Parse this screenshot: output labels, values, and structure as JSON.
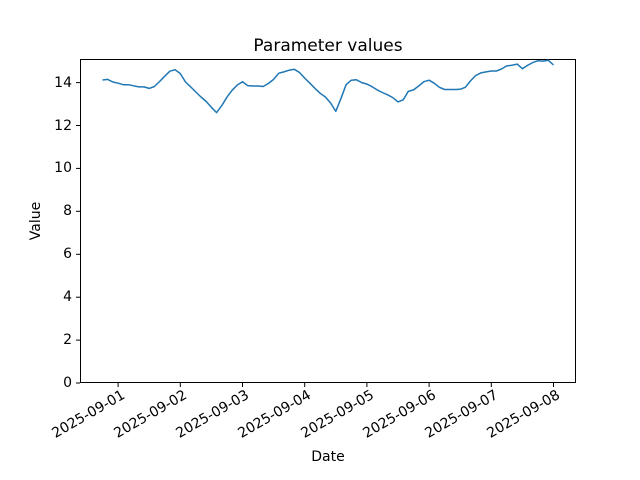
{
  "chart_data": {
    "type": "line",
    "title": "Parameter values",
    "xlabel": "Date",
    "ylabel": "Value",
    "background_color": "#ffffff",
    "axis_color": "#000000",
    "grid": false,
    "legend": null,
    "ylim": [
      0,
      15.1
    ],
    "yticks": [
      0,
      2,
      4,
      6,
      8,
      10,
      12,
      14
    ],
    "xlim_hours": [
      -14.7,
      176.7
    ],
    "xticks": [
      {
        "hour": 0,
        "label": "2025-09-01"
      },
      {
        "hour": 24,
        "label": "2025-09-02"
      },
      {
        "hour": 48,
        "label": "2025-09-03"
      },
      {
        "hour": 72,
        "label": "2025-09-04"
      },
      {
        "hour": 96,
        "label": "2025-09-05"
      },
      {
        "hour": 120,
        "label": "2025-09-06"
      },
      {
        "hour": 144,
        "label": "2025-09-07"
      },
      {
        "hour": 168,
        "label": "2025-09-08"
      }
    ],
    "series": [
      {
        "name": "parameter-values",
        "color": "#1f77b4",
        "line_width": 1.5,
        "points_hour_value": [
          [
            -6,
            14.12
          ],
          [
            -4,
            14.15
          ],
          [
            -2,
            14.03
          ],
          [
            0,
            13.97
          ],
          [
            2,
            13.9
          ],
          [
            4,
            13.9
          ],
          [
            6,
            13.85
          ],
          [
            8,
            13.8
          ],
          [
            10,
            13.8
          ],
          [
            12,
            13.73
          ],
          [
            14,
            13.82
          ],
          [
            16,
            14.05
          ],
          [
            18,
            14.3
          ],
          [
            20,
            14.53
          ],
          [
            22,
            14.6
          ],
          [
            24,
            14.42
          ],
          [
            26,
            14.03
          ],
          [
            28,
            13.8
          ],
          [
            30,
            13.56
          ],
          [
            32,
            13.33
          ],
          [
            34,
            13.12
          ],
          [
            36,
            12.85
          ],
          [
            38,
            12.6
          ],
          [
            40,
            12.93
          ],
          [
            42,
            13.32
          ],
          [
            44,
            13.64
          ],
          [
            46,
            13.89
          ],
          [
            48,
            14.04
          ],
          [
            50,
            13.86
          ],
          [
            52,
            13.84
          ],
          [
            54,
            13.84
          ],
          [
            56,
            13.82
          ],
          [
            58,
            13.96
          ],
          [
            60,
            14.15
          ],
          [
            62,
            14.44
          ],
          [
            64,
            14.5
          ],
          [
            66,
            14.58
          ],
          [
            68,
            14.62
          ],
          [
            70,
            14.47
          ],
          [
            72,
            14.21
          ],
          [
            74,
            13.97
          ],
          [
            76,
            13.73
          ],
          [
            78,
            13.5
          ],
          [
            80,
            13.33
          ],
          [
            82,
            13.05
          ],
          [
            84,
            12.66
          ],
          [
            86,
            13.27
          ],
          [
            88,
            13.9
          ],
          [
            90,
            14.11
          ],
          [
            92,
            14.13
          ],
          [
            94,
            14.0
          ],
          [
            96,
            13.93
          ],
          [
            98,
            13.81
          ],
          [
            100,
            13.66
          ],
          [
            102,
            13.54
          ],
          [
            104,
            13.43
          ],
          [
            106,
            13.3
          ],
          [
            108,
            13.1
          ],
          [
            110,
            13.2
          ],
          [
            112,
            13.59
          ],
          [
            114,
            13.66
          ],
          [
            116,
            13.84
          ],
          [
            118,
            14.04
          ],
          [
            120,
            14.11
          ],
          [
            122,
            13.97
          ],
          [
            124,
            13.78
          ],
          [
            126,
            13.68
          ],
          [
            128,
            13.68
          ],
          [
            130,
            13.68
          ],
          [
            132,
            13.69
          ],
          [
            134,
            13.78
          ],
          [
            136,
            14.08
          ],
          [
            138,
            14.33
          ],
          [
            140,
            14.45
          ],
          [
            142,
            14.5
          ],
          [
            144,
            14.54
          ],
          [
            146,
            14.54
          ],
          [
            148,
            14.64
          ],
          [
            150,
            14.78
          ],
          [
            152,
            14.81
          ],
          [
            154,
            14.86
          ],
          [
            156,
            14.65
          ],
          [
            158,
            14.8
          ],
          [
            160,
            14.93
          ],
          [
            162,
            15.02
          ],
          [
            164,
            15.0
          ],
          [
            166,
            15.04
          ],
          [
            168,
            14.82
          ]
        ]
      }
    ]
  }
}
